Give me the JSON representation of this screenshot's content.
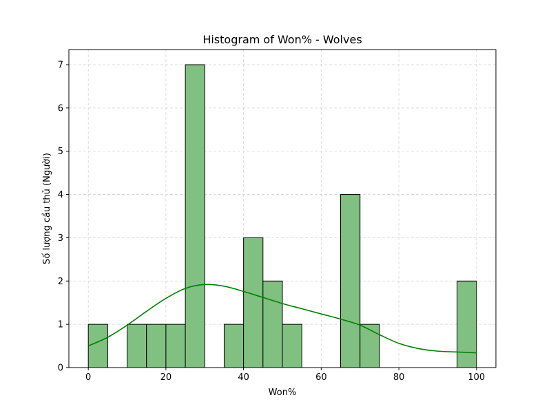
{
  "chart_data": {
    "type": "bar",
    "subtype": "histogram",
    "title": "Histogram of Won% - Wolves",
    "xlabel": "Won%",
    "ylabel": "Số lượng cầu thủ (Người)",
    "xlim": [
      -5,
      105
    ],
    "ylim": [
      0,
      7.35
    ],
    "x_ticks": [
      0,
      20,
      40,
      60,
      80,
      100
    ],
    "y_ticks": [
      0,
      1,
      2,
      3,
      4,
      5,
      6,
      7
    ],
    "bin_width": 5,
    "bins": [
      {
        "start": 0,
        "end": 5,
        "count": 1
      },
      {
        "start": 10,
        "end": 15,
        "count": 1
      },
      {
        "start": 15,
        "end": 20,
        "count": 1
      },
      {
        "start": 20,
        "end": 25,
        "count": 1
      },
      {
        "start": 25,
        "end": 30,
        "count": 7
      },
      {
        "start": 35,
        "end": 40,
        "count": 1
      },
      {
        "start": 40,
        "end": 45,
        "count": 3
      },
      {
        "start": 45,
        "end": 50,
        "count": 2
      },
      {
        "start": 50,
        "end": 55,
        "count": 1
      },
      {
        "start": 65,
        "end": 70,
        "count": 4
      },
      {
        "start": 70,
        "end": 75,
        "count": 1
      },
      {
        "start": 95,
        "end": 100,
        "count": 2
      }
    ],
    "kde": {
      "name": "KDE",
      "x": [
        0,
        5,
        10,
        15,
        20,
        25,
        30,
        35,
        40,
        45,
        50,
        55,
        60,
        65,
        70,
        75,
        80,
        85,
        90,
        95,
        100
      ],
      "y": [
        0.5,
        0.7,
        0.98,
        1.3,
        1.6,
        1.83,
        1.92,
        1.88,
        1.76,
        1.62,
        1.48,
        1.36,
        1.24,
        1.12,
        0.98,
        0.76,
        0.56,
        0.44,
        0.38,
        0.36,
        0.34
      ]
    },
    "grid": true,
    "colors": {
      "bar_fill": "#80c080",
      "bar_edge": "#000000",
      "kde_line": "#008000",
      "grid": "#d3d3d3"
    }
  }
}
